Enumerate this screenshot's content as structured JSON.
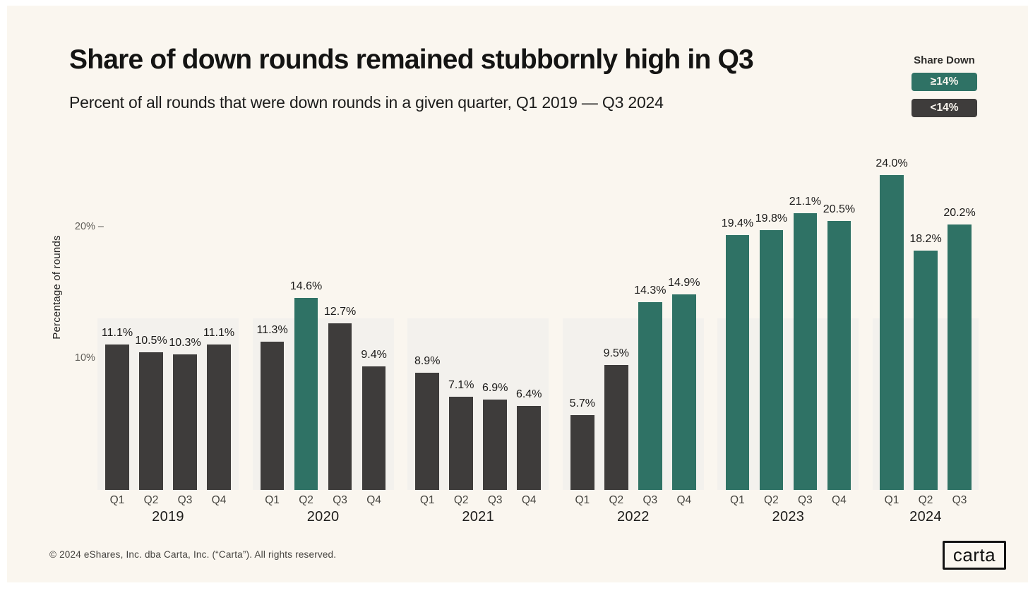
{
  "page": {
    "background": "#FFFFFF",
    "card_background": "#FAF6EF",
    "band_color": "#F3F1ED"
  },
  "header": {
    "title": "Share of down rounds remained stubbornly high in Q3",
    "subtitle": "Percent of all rounds that were down rounds in a given quarter, Q1 2019 — Q3 2024"
  },
  "legend": {
    "title": "Share Down",
    "position": "top-right",
    "items": [
      {
        "key": "ge14",
        "label": "≥14%",
        "color": "#2F7265"
      },
      {
        "key": "lt14",
        "label": "<14%",
        "color": "#3E3C3B"
      }
    ]
  },
  "chart_data": {
    "type": "bar",
    "title": "Share of down rounds remained stubbornly high in Q3",
    "xlabel": "",
    "ylabel": "Percentage of rounds",
    "ylim": [
      0,
      26
    ],
    "grid": false,
    "yticks": [
      {
        "value": 10,
        "label": "10% –"
      },
      {
        "value": 20,
        "label": "20% –"
      }
    ],
    "threshold_value": 14,
    "groups": [
      {
        "year": "2019",
        "bars": [
          {
            "quarter": "Q1",
            "value": 11.1,
            "label": "11.1%",
            "series": "lt14"
          },
          {
            "quarter": "Q2",
            "value": 10.5,
            "label": "10.5%",
            "series": "lt14"
          },
          {
            "quarter": "Q3",
            "value": 10.3,
            "label": "10.3%",
            "series": "lt14"
          },
          {
            "quarter": "Q4",
            "value": 11.1,
            "label": "11.1%",
            "series": "lt14"
          }
        ]
      },
      {
        "year": "2020",
        "bars": [
          {
            "quarter": "Q1",
            "value": 11.3,
            "label": "11.3%",
            "series": "lt14"
          },
          {
            "quarter": "Q2",
            "value": 14.6,
            "label": "14.6%",
            "series": "ge14"
          },
          {
            "quarter": "Q3",
            "value": 12.7,
            "label": "12.7%",
            "series": "lt14"
          },
          {
            "quarter": "Q4",
            "value": 9.4,
            "label": "9.4%",
            "series": "lt14"
          }
        ]
      },
      {
        "year": "2021",
        "bars": [
          {
            "quarter": "Q1",
            "value": 8.9,
            "label": "8.9%",
            "series": "lt14"
          },
          {
            "quarter": "Q2",
            "value": 7.1,
            "label": "7.1%",
            "series": "lt14"
          },
          {
            "quarter": "Q3",
            "value": 6.9,
            "label": "6.9%",
            "series": "lt14"
          },
          {
            "quarter": "Q4",
            "value": 6.4,
            "label": "6.4%",
            "series": "lt14"
          }
        ]
      },
      {
        "year": "2022",
        "bars": [
          {
            "quarter": "Q1",
            "value": 5.7,
            "label": "5.7%",
            "series": "lt14"
          },
          {
            "quarter": "Q2",
            "value": 9.5,
            "label": "9.5%",
            "series": "lt14"
          },
          {
            "quarter": "Q3",
            "value": 14.3,
            "label": "14.3%",
            "series": "ge14"
          },
          {
            "quarter": "Q4",
            "value": 14.9,
            "label": "14.9%",
            "series": "ge14"
          }
        ]
      },
      {
        "year": "2023",
        "bars": [
          {
            "quarter": "Q1",
            "value": 19.4,
            "label": "19.4%",
            "series": "ge14"
          },
          {
            "quarter": "Q2",
            "value": 19.8,
            "label": "19.8%",
            "series": "ge14"
          },
          {
            "quarter": "Q3",
            "value": 21.1,
            "label": "21.1%",
            "series": "ge14"
          },
          {
            "quarter": "Q4",
            "value": 20.5,
            "label": "20.5%",
            "series": "ge14"
          }
        ]
      },
      {
        "year": "2024",
        "bars": [
          {
            "quarter": "Q1",
            "value": 24.0,
            "label": "24.0%",
            "series": "ge14"
          },
          {
            "quarter": "Q2",
            "value": 18.2,
            "label": "18.2%",
            "series": "ge14"
          },
          {
            "quarter": "Q3",
            "value": 20.2,
            "label": "20.2%",
            "series": "ge14"
          }
        ]
      }
    ]
  },
  "footer": {
    "copyright": "© 2024 eShares, Inc. dba Carta, Inc. (“Carta”). All rights reserved.",
    "logo_text": "carta"
  }
}
